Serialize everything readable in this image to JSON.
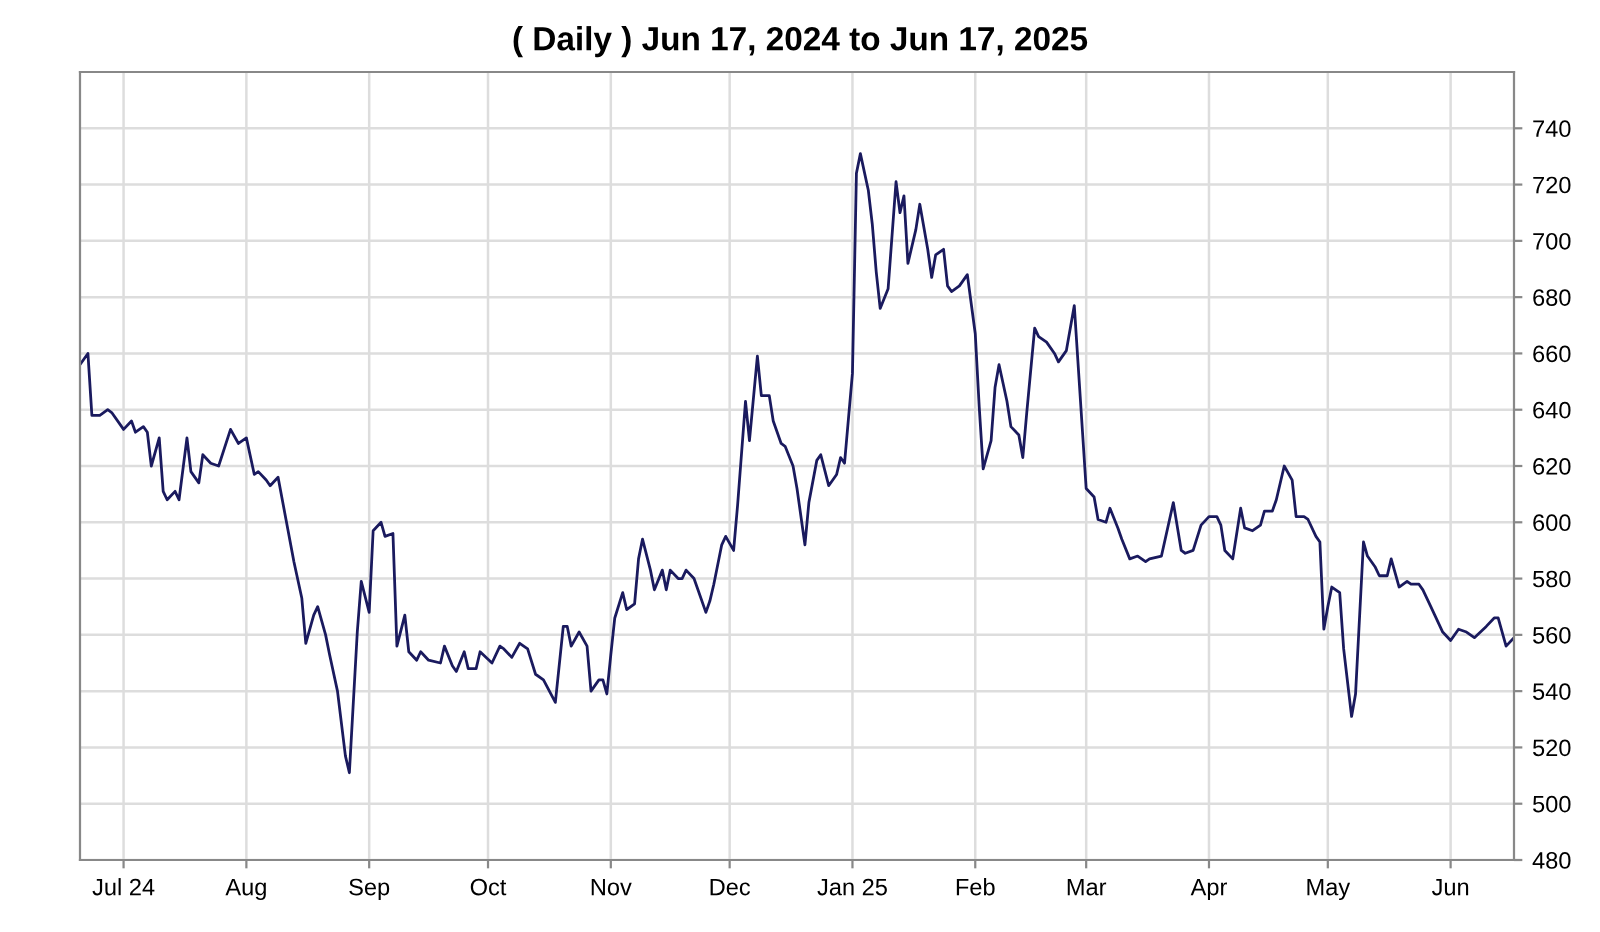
{
  "chart_data": {
    "type": "line",
    "title": "( Daily ) Jun 17, 2024 to Jun 17, 2025",
    "x": [
      "2024-06-20",
      "2024-06-22",
      "2024-06-23",
      "2024-06-25",
      "2024-06-27",
      "2024-06-28",
      "2024-07-01",
      "2024-07-03",
      "2024-07-04",
      "2024-07-06",
      "2024-07-07",
      "2024-07-08",
      "2024-07-10",
      "2024-07-11",
      "2024-07-12",
      "2024-07-14",
      "2024-07-15",
      "2024-07-17",
      "2024-07-18",
      "2024-07-20",
      "2024-07-21",
      "2024-07-23",
      "2024-07-25",
      "2024-07-28",
      "2024-07-30",
      "2024-08-01",
      "2024-08-03",
      "2024-08-04",
      "2024-08-06",
      "2024-08-07",
      "2024-08-09",
      "2024-08-11",
      "2024-08-13",
      "2024-08-15",
      "2024-08-16",
      "2024-08-18",
      "2024-08-19",
      "2024-08-21",
      "2024-08-22",
      "2024-08-24",
      "2024-08-26",
      "2024-08-27",
      "2024-08-29",
      "2024-08-30",
      "2024-09-01",
      "2024-09-02",
      "2024-09-04",
      "2024-09-05",
      "2024-09-07",
      "2024-09-08",
      "2024-09-10",
      "2024-09-11",
      "2024-09-13",
      "2024-09-14",
      "2024-09-16",
      "2024-09-19",
      "2024-09-20",
      "2024-09-22",
      "2024-09-23",
      "2024-09-25",
      "2024-09-26",
      "2024-09-28",
      "2024-09-29",
      "2024-10-02",
      "2024-10-04",
      "2024-10-05",
      "2024-10-07",
      "2024-10-09",
      "2024-10-11",
      "2024-10-13",
      "2024-10-15",
      "2024-10-18",
      "2024-10-20",
      "2024-10-21",
      "2024-10-22",
      "2024-10-24",
      "2024-10-26",
      "2024-10-27",
      "2024-10-29",
      "2024-10-30",
      "2024-10-31",
      "2024-11-01",
      "2024-11-02",
      "2024-11-04",
      "2024-11-05",
      "2024-11-07",
      "2024-11-08",
      "2024-11-09",
      "2024-11-11",
      "2024-11-12",
      "2024-11-14",
      "2024-11-15",
      "2024-11-16",
      "2024-11-18",
      "2024-11-19",
      "2024-11-20",
      "2024-11-22",
      "2024-11-23",
      "2024-11-25",
      "2024-11-26",
      "2024-11-27",
      "2024-11-29",
      "2024-11-30",
      "2024-12-02",
      "2024-12-03",
      "2024-12-05",
      "2024-12-06",
      "2024-12-08",
      "2024-12-09",
      "2024-12-11",
      "2024-12-12",
      "2024-12-14",
      "2024-12-15",
      "2024-12-17",
      "2024-12-18",
      "2024-12-20",
      "2024-12-21",
      "2024-12-23",
      "2024-12-24",
      "2024-12-26",
      "2024-12-28",
      "2024-12-29",
      "2024-12-30",
      "2025-01-01",
      "2025-01-02",
      "2025-01-03",
      "2025-01-05",
      "2025-01-06",
      "2025-01-07",
      "2025-01-08",
      "2025-01-10",
      "2025-01-12",
      "2025-01-13",
      "2025-01-14",
      "2025-01-15",
      "2025-01-17",
      "2025-01-18",
      "2025-01-20",
      "2025-01-21",
      "2025-01-22",
      "2025-01-24",
      "2025-01-25",
      "2025-01-26",
      "2025-01-28",
      "2025-01-30",
      "2025-02-01",
      "2025-02-02",
      "2025-02-03",
      "2025-02-05",
      "2025-02-06",
      "2025-02-07",
      "2025-02-09",
      "2025-02-10",
      "2025-02-12",
      "2025-02-13",
      "2025-02-14",
      "2025-02-16",
      "2025-02-17",
      "2025-02-19",
      "2025-02-21",
      "2025-02-22",
      "2025-02-24",
      "2025-02-26",
      "2025-03-01",
      "2025-03-03",
      "2025-03-04",
      "2025-03-06",
      "2025-03-07",
      "2025-03-09",
      "2025-03-10",
      "2025-03-12",
      "2025-03-14",
      "2025-03-16",
      "2025-03-17",
      "2025-03-20",
      "2025-03-23",
      "2025-03-25",
      "2025-03-26",
      "2025-03-28",
      "2025-03-30",
      "2025-04-01",
      "2025-04-03",
      "2025-04-04",
      "2025-04-05",
      "2025-04-07",
      "2025-04-09",
      "2025-04-10",
      "2025-04-12",
      "2025-04-14",
      "2025-04-15",
      "2025-04-17",
      "2025-04-18",
      "2025-04-20",
      "2025-04-22",
      "2025-04-23",
      "2025-04-25",
      "2025-04-26",
      "2025-04-28",
      "2025-04-29",
      "2025-04-30",
      "2025-05-01",
      "2025-05-02",
      "2025-05-04",
      "2025-05-05",
      "2025-05-07",
      "2025-05-08",
      "2025-05-10",
      "2025-05-11",
      "2025-05-13",
      "2025-05-14",
      "2025-05-16",
      "2025-05-17",
      "2025-05-19",
      "2025-05-21",
      "2025-05-22",
      "2025-05-24",
      "2025-05-25",
      "2025-05-27",
      "2025-05-28",
      "2025-05-30",
      "2025-06-01",
      "2025-06-03",
      "2025-06-05",
      "2025-06-07",
      "2025-06-10",
      "2025-06-12",
      "2025-06-13",
      "2025-06-15",
      "2025-06-17"
    ],
    "series": [
      {
        "color": "#1a1a5e",
        "values": [
          656,
          660,
          638,
          638,
          640,
          639,
          633,
          636,
          632,
          634,
          632,
          620,
          630,
          611,
          608,
          611,
          608,
          630,
          618,
          614,
          624,
          621,
          620,
          633,
          628,
          630,
          617,
          618,
          615,
          613,
          616,
          601,
          586,
          573,
          557,
          567,
          570,
          560,
          553,
          540,
          517,
          511,
          561,
          579,
          568,
          597,
          600,
          595,
          596,
          556,
          567,
          554,
          551,
          554,
          551,
          550,
          556,
          549,
          547,
          554,
          548,
          548,
          554,
          550,
          556,
          555,
          552,
          557,
          555,
          546,
          544,
          536,
          563,
          563,
          556,
          561,
          556,
          540,
          544,
          544,
          539,
          553,
          566,
          575,
          569,
          571,
          587,
          594,
          583,
          576,
          583,
          576,
          583,
          580,
          580,
          583,
          580,
          576,
          568,
          572,
          578,
          592,
          595,
          590,
          606,
          643,
          629,
          659,
          645,
          645,
          636,
          628,
          627,
          620,
          612,
          592,
          607,
          622,
          624,
          613,
          617,
          623,
          621,
          653,
          724,
          731,
          718,
          706,
          689,
          676,
          683,
          721,
          710,
          716,
          692,
          704,
          713,
          697,
          687,
          695,
          697,
          684,
          682,
          684,
          688,
          667,
          641,
          619,
          629,
          648,
          656,
          643,
          634,
          631,
          623,
          639,
          669,
          666,
          664,
          660,
          657,
          661,
          677,
          612,
          609,
          601,
          600,
          605,
          598,
          594,
          587,
          588,
          586,
          587,
          588,
          607,
          590,
          589,
          590,
          599,
          602,
          602,
          599,
          590,
          587,
          605,
          598,
          597,
          599,
          604,
          604,
          608,
          620,
          615,
          602,
          602,
          601,
          595,
          593,
          562,
          570,
          577,
          575,
          555,
          531,
          539,
          593,
          588,
          584,
          581,
          581,
          587,
          577,
          579,
          578,
          578,
          576,
          570,
          567,
          561,
          558,
          562,
          561,
          559,
          563,
          566,
          566,
          556,
          559
        ]
      }
    ],
    "xlim": [
      "2024-06-20",
      "2025-06-17"
    ],
    "xticks": [
      {
        "value": "2024-07-01",
        "label": "Jul 24"
      },
      {
        "value": "2024-08-01",
        "label": "Aug"
      },
      {
        "value": "2024-09-01",
        "label": "Sep"
      },
      {
        "value": "2024-10-01",
        "label": "Oct"
      },
      {
        "value": "2024-11-01",
        "label": "Nov"
      },
      {
        "value": "2024-12-01",
        "label": "Dec"
      },
      {
        "value": "2025-01-01",
        "label": "Jan 25"
      },
      {
        "value": "2025-02-01",
        "label": "Feb"
      },
      {
        "value": "2025-03-01",
        "label": "Mar"
      },
      {
        "value": "2025-04-01",
        "label": "Apr"
      },
      {
        "value": "2025-05-01",
        "label": "May"
      },
      {
        "value": "2025-06-01",
        "label": "Jun"
      }
    ],
    "ylim": [
      480,
      760
    ],
    "yticks": [
      480,
      500,
      520,
      540,
      560,
      580,
      600,
      620,
      640,
      660,
      680,
      700,
      720,
      740
    ],
    "grid": true,
    "line_style": "solid",
    "marker": "none"
  }
}
